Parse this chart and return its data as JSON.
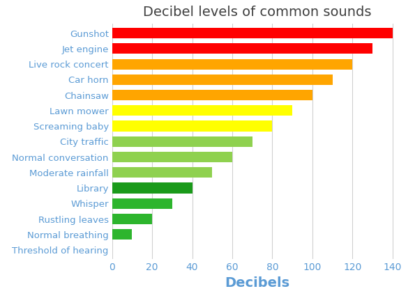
{
  "title": "Decibel levels of common sounds",
  "xlabel": "Decibels",
  "categories": [
    "Threshold of hearing",
    "Normal breathing",
    "Rustling leaves",
    "Whisper",
    "Library",
    "Moderate rainfall",
    "Normal conversation",
    "City traffic",
    "Screaming baby",
    "Lawn mower",
    "Chainsaw",
    "Car horn",
    "Live rock concert",
    "Jet engine",
    "Gunshot"
  ],
  "values": [
    0,
    10,
    20,
    30,
    40,
    50,
    60,
    70,
    80,
    90,
    100,
    110,
    120,
    130,
    140
  ],
  "bar_colors": [
    "#e8e8e8",
    "#2db52d",
    "#2db52d",
    "#2db52d",
    "#1a9a1a",
    "#8fd14f",
    "#8fd14f",
    "#8fd14f",
    "#ffff00",
    "#ffff00",
    "#ffa500",
    "#ffa500",
    "#ffa500",
    "#ff0000",
    "#ff0000"
  ],
  "xlim": [
    0,
    145
  ],
  "title_fontsize": 14,
  "label_fontsize": 9.5,
  "xlabel_fontsize": 14,
  "tick_fontsize": 10,
  "background_color": "#ffffff",
  "title_color": "#404040",
  "text_color": "#5b9bd5",
  "grid_color": "#d0d0d0"
}
